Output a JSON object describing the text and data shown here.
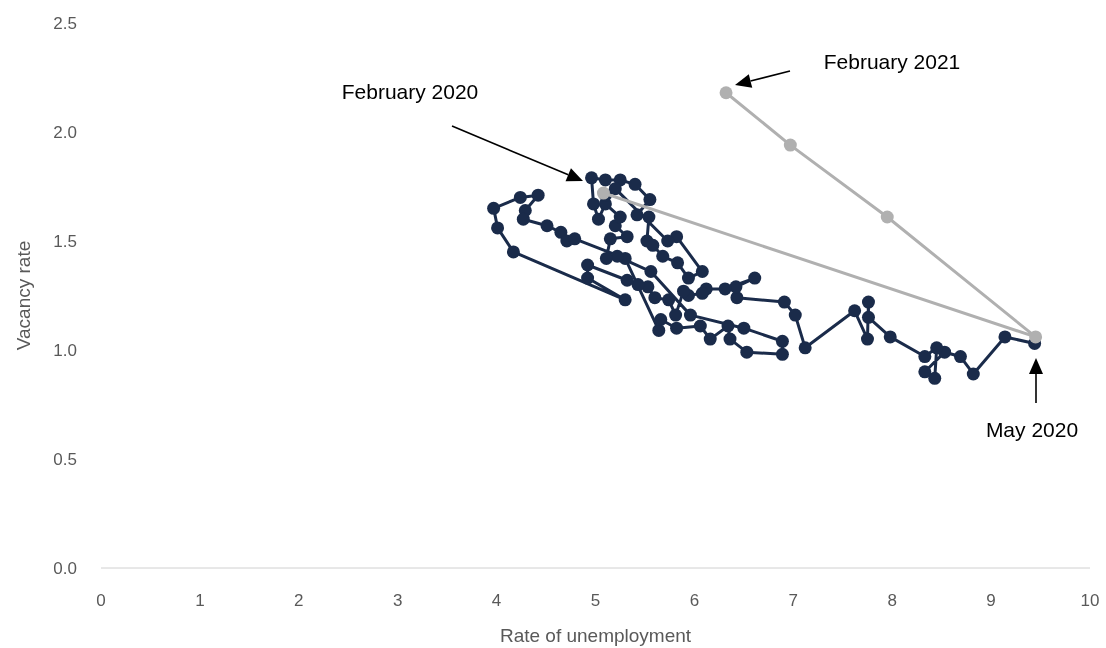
{
  "chart_data": {
    "type": "line",
    "xlabel": "Rate of unemployment",
    "ylabel": "Vacancy rate",
    "xlim": [
      0,
      10
    ],
    "ylim": [
      0,
      2.5
    ],
    "xticks": [
      0,
      1,
      2,
      3,
      4,
      5,
      6,
      7,
      8,
      9,
      10
    ],
    "yticks": [
      {
        "value": 0,
        "label": "0.0"
      },
      {
        "value": 0.5,
        "label": "0.5"
      },
      {
        "value": 1,
        "label": "1.0"
      },
      {
        "value": 1.5,
        "label": "1.5"
      },
      {
        "value": 2,
        "label": "2.0"
      },
      {
        "value": 2.5,
        "label": "2.5"
      }
    ],
    "grid": false,
    "marker": "circle",
    "line_style": "solid",
    "series": [
      {
        "color": "#1a2b4a",
        "x": [
          9.44,
          9.14,
          8.82,
          8.69,
          8.53,
          8.33,
          8.43,
          8.45,
          8.33,
          7.98,
          7.76,
          7.76,
          7.75,
          7.62,
          7.12,
          7.02,
          6.91,
          6.43,
          6.42,
          6.61,
          6.31,
          6.12,
          6.08,
          5.94,
          5.89,
          5.81,
          5.74,
          5.6,
          5.53,
          5.43,
          5.32,
          4.92,
          4.92,
          5.3,
          4.17,
          4.01,
          3.97,
          4.24,
          4.42,
          4.29,
          4.27,
          4.51,
          4.65,
          4.71,
          4.79,
          5.3,
          5.64,
          5.66,
          5.82,
          6.06,
          6.16,
          6.34,
          6.36,
          6.53,
          6.89,
          6.89,
          6.5,
          5.96,
          5.56,
          5.22,
          5.11,
          5.15,
          5.32,
          5.2,
          5.25,
          5.1,
          5.03,
          4.98,
          4.96,
          5.1,
          5.25,
          5.4,
          5.55,
          5.42,
          5.54,
          5.52,
          5.58,
          5.68,
          5.83,
          5.94,
          6.08,
          5.82,
          5.73,
          5.2,
          5.1
        ],
        "values": [
          1.03,
          1.06,
          0.89,
          0.97,
          0.99,
          0.9,
          0.87,
          1.01,
          0.97,
          1.06,
          1.15,
          1.22,
          1.05,
          1.18,
          1.01,
          1.16,
          1.22,
          1.24,
          1.29,
          1.33,
          1.28,
          1.28,
          1.26,
          1.25,
          1.27,
          1.16,
          1.23,
          1.24,
          1.29,
          1.3,
          1.32,
          1.39,
          1.33,
          1.23,
          1.45,
          1.56,
          1.65,
          1.7,
          1.71,
          1.64,
          1.6,
          1.57,
          1.54,
          1.5,
          1.51,
          1.42,
          1.09,
          1.14,
          1.1,
          1.11,
          1.05,
          1.11,
          1.05,
          0.99,
          0.98,
          1.04,
          1.1,
          1.16,
          1.36,
          1.43,
          1.42,
          1.51,
          1.52,
          1.57,
          1.61,
          1.67,
          1.6,
          1.67,
          1.79,
          1.78,
          1.78,
          1.76,
          1.69,
          1.62,
          1.61,
          1.5,
          1.48,
          1.43,
          1.4,
          1.33,
          1.36,
          1.52,
          1.5,
          1.74,
          1.71
        ]
      },
      {
        "color": "#b0b0b0",
        "x": [
          5.08,
          9.45,
          7.95,
          6.97,
          6.32
        ],
        "values": [
          1.72,
          1.06,
          1.61,
          1.94,
          2.18
        ]
      }
    ],
    "annotations": [
      "February 2020",
      "February 2021",
      "May 2020"
    ]
  }
}
